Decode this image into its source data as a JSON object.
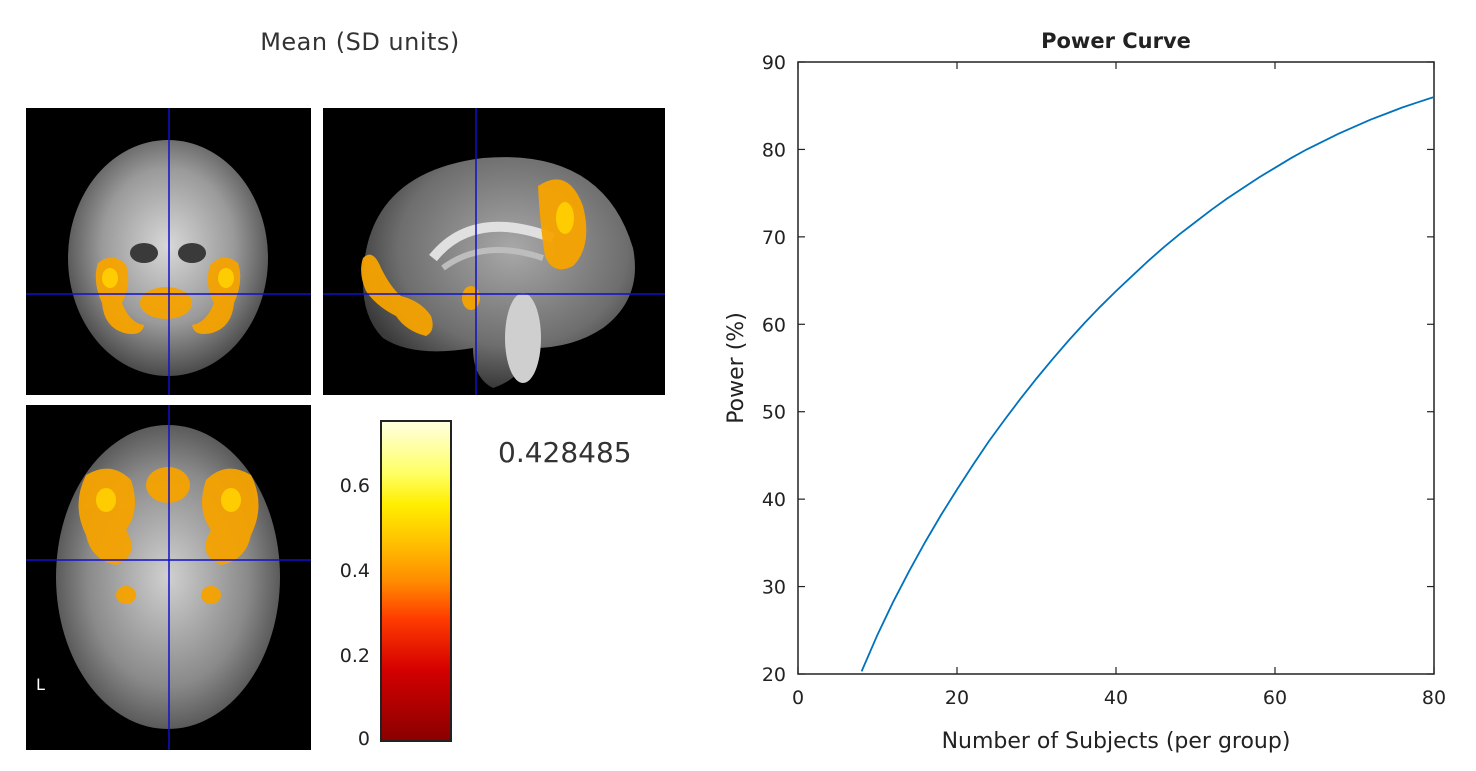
{
  "brain_panel": {
    "title": "Mean  (SD units)",
    "orientation_label": "L",
    "value_readout": "0.428485",
    "colorbar": {
      "ticks": [
        "0.6",
        "0.4",
        "0.2",
        "0"
      ],
      "tick_values": [
        0.6,
        0.4,
        0.2,
        0
      ],
      "range": [
        0,
        0.75
      ],
      "colormap": "hot",
      "colors": [
        "#8b0000",
        "#ff0000",
        "#ff8c00",
        "#ffff00",
        "#ffffe0"
      ]
    },
    "crosshair_color": "#1010c8",
    "views": [
      "coronal",
      "sagittal",
      "axial"
    ]
  },
  "chart_data": {
    "type": "line",
    "title": "Power Curve",
    "xlabel": "Number of Subjects (per group)",
    "ylabel": "Power (%)",
    "xlim": [
      0,
      80
    ],
    "ylim": [
      20,
      90
    ],
    "xticks": [
      0,
      20,
      40,
      60,
      80
    ],
    "yticks": [
      20,
      30,
      40,
      50,
      60,
      70,
      80,
      90
    ],
    "grid": false,
    "line_color": "#0072bd",
    "series": [
      {
        "x": [
          8,
          10,
          12,
          14,
          16,
          18,
          20,
          22,
          24,
          26,
          28,
          30,
          32,
          34,
          36,
          38,
          40,
          42,
          44,
          46,
          48,
          50,
          52,
          54,
          56,
          58,
          60,
          62,
          64,
          66,
          68,
          70,
          72,
          74,
          76,
          78,
          80
        ],
        "y": [
          20.3,
          24.5,
          28.3,
          31.8,
          35.1,
          38.2,
          41.1,
          43.9,
          46.6,
          49.1,
          51.5,
          53.8,
          56.0,
          58.1,
          60.1,
          62.0,
          63.8,
          65.5,
          67.2,
          68.8,
          70.3,
          71.7,
          73.1,
          74.4,
          75.6,
          76.8,
          77.9,
          79.0,
          80.0,
          80.9,
          81.8,
          82.6,
          83.4,
          84.1,
          84.8,
          85.4,
          86.0
        ]
      }
    ]
  }
}
